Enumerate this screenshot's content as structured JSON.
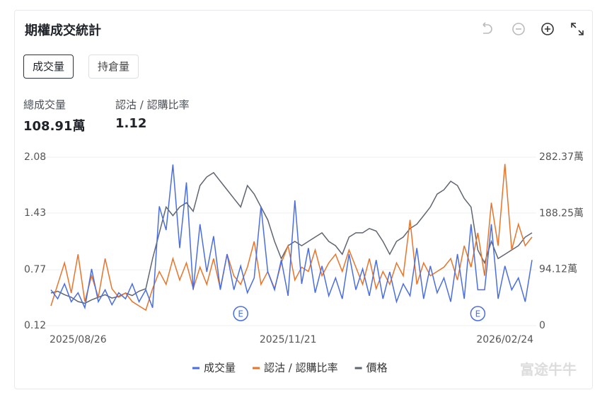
{
  "header": {
    "title": "期權成交統計",
    "tabs": [
      "成交量",
      "持倉量"
    ],
    "stats": [
      {
        "label": "總成交量",
        "value": "108.91萬"
      },
      {
        "label": "認沽 / 認購比率",
        "value": "1.12"
      }
    ],
    "watermark": "富途牛牛"
  },
  "chart_data": {
    "type": "line",
    "categories": [
      null,
      null,
      null,
      null,
      "2025/08/26",
      null,
      null,
      null,
      null,
      null,
      null,
      null,
      null,
      null,
      null,
      null,
      null,
      null,
      null,
      null,
      null,
      null,
      null,
      null,
      null,
      null,
      null,
      null,
      null,
      null,
      null,
      null,
      null,
      null,
      null,
      "2025/11/21",
      null,
      null,
      null,
      null,
      null,
      null,
      null,
      null,
      null,
      null,
      null,
      null,
      null,
      null,
      null,
      null,
      null,
      null,
      null,
      null,
      null,
      null,
      null,
      null,
      null,
      null,
      null,
      null,
      null,
      null,
      null,
      "2026/02/24",
      null,
      null,
      null,
      null
    ],
    "series": [
      {
        "name": "成交量",
        "color": "#4a6ee0",
        "axis": "y2",
        "values": [
          60,
          45,
          70,
          40,
          55,
          30,
          95,
          40,
          60,
          35,
          55,
          45,
          70,
          40,
          60,
          30,
          200,
          160,
          270,
          130,
          240,
          60,
          170,
          90,
          150,
          60,
          120,
          60,
          100,
          55,
          80,
          200,
          90,
          60,
          110,
          50,
          210,
          70,
          130,
          55,
          100,
          50,
          80,
          45,
          120,
          60,
          95,
          50,
          110,
          45,
          90,
          40,
          70,
          50,
          130,
          45,
          100,
          55,
          80,
          40,
          120,
          45,
          170,
          60,
          60,
          170,
          45,
          100,
          60,
          80,
          40,
          110
        ]
      },
      {
        "name": "認沽 / 認購比率",
        "color": "#e8742a",
        "values": [
          0.35,
          0.6,
          0.85,
          0.5,
          0.95,
          0.4,
          0.7,
          0.45,
          0.9,
          0.55,
          0.45,
          0.5,
          0.4,
          0.35,
          0.3,
          0.55,
          0.75,
          0.6,
          0.9,
          0.65,
          0.85,
          0.55,
          0.8,
          0.6,
          0.9,
          0.55,
          0.95,
          0.7,
          0.6,
          0.8,
          1.1,
          0.6,
          0.75,
          0.55,
          0.85,
          1.05,
          0.65,
          0.8,
          0.75,
          1.0,
          0.7,
          0.85,
          0.95,
          0.75,
          1.0,
          0.8,
          0.6,
          0.9,
          0.55,
          0.75,
          0.6,
          0.85,
          0.7,
          1.35,
          0.6,
          0.85,
          0.7,
          0.75,
          0.8,
          0.9,
          0.65,
          1.05,
          0.8,
          1.2,
          0.7,
          1.55,
          1.05,
          2.0,
          1.0,
          1.3,
          1.05,
          1.15
        ]
      },
      {
        "name": "價格",
        "color": "#5f6670",
        "values": [
          0.5,
          0.52,
          0.48,
          0.45,
          0.4,
          0.38,
          0.42,
          0.45,
          0.48,
          0.44,
          0.46,
          0.5,
          0.47,
          0.52,
          0.55,
          0.9,
          1.2,
          1.5,
          1.4,
          1.5,
          1.55,
          1.45,
          1.75,
          1.85,
          1.9,
          1.8,
          1.7,
          1.6,
          1.5,
          1.75,
          1.65,
          1.5,
          1.35,
          1.1,
          0.9,
          1.05,
          1.1,
          1.05,
          1.1,
          1.15,
          1.2,
          1.1,
          1.05,
          0.95,
          1.15,
          1.2,
          1.2,
          1.25,
          1.22,
          1.1,
          0.95,
          1.1,
          1.15,
          1.25,
          1.3,
          1.4,
          1.5,
          1.65,
          1.7,
          1.8,
          1.75,
          1.6,
          1.5,
          1.0,
          0.85,
          1.1,
          0.9,
          0.95,
          1.0,
          1.05,
          1.15,
          1.2
        ]
      }
    ],
    "ylim": [
      0.12,
      2.08
    ],
    "yticks": [
      0.12,
      0.77,
      1.43,
      2.08
    ],
    "y2lim": [
      0,
      282.37
    ],
    "y2ticks": [
      0,
      {
        "value": 94.12,
        "label": "94.12萬"
      },
      {
        "value": 188.25,
        "label": "188.25萬"
      },
      {
        "value": 282.37,
        "label": "282.37萬"
      }
    ],
    "grid": true,
    "events": [
      {
        "index": 28,
        "label": "E"
      },
      {
        "index": 63,
        "label": "E"
      }
    ]
  }
}
